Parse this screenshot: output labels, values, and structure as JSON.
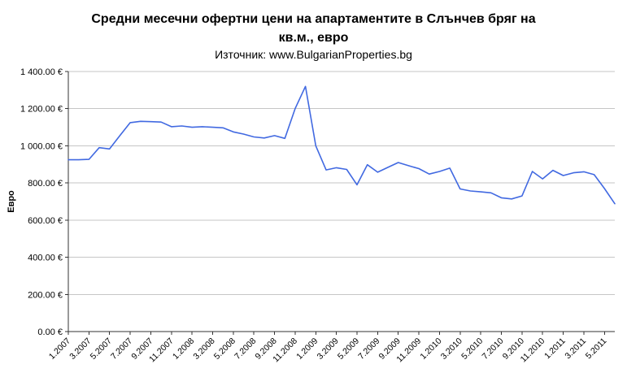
{
  "page": {
    "title_line1": "Средни месечни офертни цени на апартаментите в Слънчев бряг на",
    "title_line2": "кв.м., евро",
    "subtitle": "Източник: www.BulgarianProperties.bg"
  },
  "chart_data": {
    "type": "line",
    "title": "Средни месечни офертни цени на апартаментите в Слънчев бряг на кв.м., евро",
    "subtitle": "Източник: www.BulgarianProperties.bg",
    "ylabel": "Евро",
    "xlabel": "",
    "ylim": [
      0,
      1400
    ],
    "ytick_step": 200,
    "ytick_labels": [
      "0.00 €",
      "200.00 €",
      "400.00 €",
      "600.00 €",
      "800.00 €",
      "1 000.00 €",
      "1 200.00 €",
      "1 400.00 €"
    ],
    "grid": true,
    "legend": "none",
    "line_color": "#4169E1",
    "grid_color": "#C6C6C6",
    "axis_color": "#333333",
    "x_label_interval": 2,
    "x": [
      "1.2007",
      "2.2007",
      "3.2007",
      "4.2007",
      "5.2007",
      "6.2007",
      "7.2007",
      "8.2007",
      "9.2007",
      "10.2007",
      "11.2007",
      "12.2007",
      "1.2008",
      "2.2008",
      "3.2008",
      "4.2008",
      "5.2008",
      "6.2008",
      "7.2008",
      "8.2008",
      "9.2008",
      "10.2008",
      "11.2008",
      "12.2008",
      "1.2009",
      "2.2009",
      "3.2009",
      "4.2009",
      "5.2009",
      "6.2009",
      "7.2009",
      "8.2009",
      "9.2009",
      "10.2009",
      "11.2009",
      "12.2009",
      "1.2010",
      "2.2010",
      "3.2010",
      "4.2010",
      "5.2010",
      "6.2010",
      "7.2010",
      "8.2010",
      "9.2010",
      "10.2010",
      "11.2010",
      "12.2010",
      "1.2011",
      "2.2011",
      "3.2011",
      "4.2011",
      "5.2011",
      "6.2011"
    ],
    "values": [
      925,
      925,
      927,
      990,
      983,
      1055,
      1125,
      1132,
      1130,
      1128,
      1103,
      1107,
      1100,
      1103,
      1100,
      1097,
      1075,
      1063,
      1048,
      1042,
      1055,
      1040,
      1200,
      1320,
      1000,
      870,
      882,
      873,
      790,
      898,
      858,
      884,
      910,
      893,
      877,
      848,
      862,
      880,
      768,
      757,
      752,
      747,
      720,
      714,
      730,
      862,
      822,
      868,
      840,
      855,
      860,
      845,
      770,
      688
    ]
  }
}
